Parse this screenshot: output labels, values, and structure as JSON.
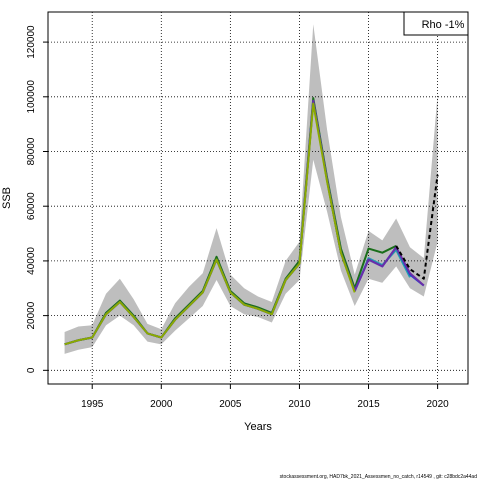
{
  "chart_data": {
    "type": "line",
    "title": "",
    "xlabel": "Years",
    "ylabel": "SSB",
    "xlim": [
      1991.8,
      2022.2
    ],
    "ylim": [
      -5000,
      131000
    ],
    "x_ticks": [
      1995,
      2000,
      2005,
      2010,
      2015,
      2020
    ],
    "y_ticks": [
      0,
      20000,
      40000,
      60000,
      80000,
      100000,
      120000
    ],
    "grid": true,
    "legend_text": "Rho -1%",
    "legend_position": "top-right",
    "footer": "stockassessment.org, HAD7bk_2021_Assessmen_no_catch, r14549 , git: c28bdc2a44ad",
    "confidence_band": {
      "color": "#bebebe",
      "x": [
        1993,
        1994,
        1995,
        1996,
        1997,
        1998,
        1999,
        2000,
        2001,
        2002,
        2003,
        2004,
        2005,
        2006,
        2007,
        2008,
        2009,
        2010,
        2011,
        2012,
        2013,
        2014,
        2015,
        2016,
        2017,
        2018,
        2019,
        2020
      ],
      "upper": [
        14000,
        16000,
        16500,
        28000,
        33500,
        26000,
        17000,
        15000,
        24500,
        30500,
        35500,
        52000,
        35000,
        30000,
        27000,
        25000,
        40000,
        47000,
        126500,
        88000,
        56000,
        35000,
        51000,
        47500,
        55500,
        45000,
        41000,
        101000
      ],
      "lower": [
        6000,
        7500,
        8500,
        16500,
        20000,
        16500,
        10500,
        9500,
        14500,
        19000,
        23500,
        33000,
        23500,
        20500,
        19500,
        17500,
        28000,
        33000,
        77000,
        58000,
        36500,
        23500,
        33500,
        32000,
        38000,
        30000,
        27000,
        47000
      ]
    },
    "series": [
      {
        "color": "#1a6e1a",
        "x": [
          1993,
          1994,
          1995,
          1996,
          1997,
          1998,
          1999,
          2000,
          2001,
          2002,
          2003,
          2004,
          2005,
          2006,
          2007,
          2008,
          2009,
          2010,
          2011,
          2012,
          2013,
          2014,
          2015,
          2016,
          2017
        ],
        "values": [
          9500,
          11000,
          12000,
          21000,
          25500,
          20000,
          13500,
          12000,
          19000,
          24000,
          29000,
          41500,
          29000,
          24500,
          23000,
          21000,
          33500,
          40000,
          99500,
          70500,
          44500,
          30000,
          44500,
          43000,
          45500
        ]
      },
      {
        "color": "#25a0b0",
        "x": [
          1993,
          1994,
          1995,
          1996,
          1997,
          1998,
          1999,
          2000,
          2001,
          2002,
          2003,
          2004,
          2005,
          2006,
          2007,
          2008,
          2009,
          2010,
          2011,
          2012,
          2013,
          2014,
          2015,
          2016,
          2017,
          2018
        ],
        "values": [
          9500,
          11000,
          12000,
          20500,
          25000,
          19500,
          13500,
          12000,
          18500,
          23500,
          28500,
          40500,
          28500,
          24000,
          22500,
          20500,
          33000,
          39000,
          98500,
          69500,
          43000,
          29000,
          41000,
          38500,
          44000,
          34000
        ]
      },
      {
        "color": "#1d3fd6",
        "x": [
          1993,
          1994,
          1995,
          1996,
          1997,
          1998,
          1999,
          2000,
          2001,
          2002,
          2003,
          2004,
          2005,
          2006,
          2007,
          2008,
          2009,
          2010,
          2011,
          2012,
          2013,
          2014,
          2015,
          2016,
          2017,
          2018,
          2019
        ],
        "values": [
          9500,
          11000,
          12000,
          20500,
          25000,
          19500,
          13500,
          12000,
          18500,
          23500,
          28500,
          40500,
          28500,
          24000,
          22500,
          20500,
          33000,
          39000,
          98500,
          69500,
          43000,
          29000,
          40500,
          38000,
          45000,
          35000,
          31000
        ]
      },
      {
        "color": "#6a2ea8",
        "x": [
          1993,
          1994,
          1995,
          1996,
          1997,
          1998,
          1999,
          2000,
          2001,
          2002,
          2003,
          2004,
          2005,
          2006,
          2007,
          2008,
          2009,
          2010,
          2011,
          2012,
          2013,
          2014,
          2015,
          2016,
          2017,
          2018,
          2019
        ],
        "values": [
          9500,
          11000,
          12000,
          20500,
          25000,
          19500,
          13500,
          12000,
          18500,
          23500,
          28500,
          40500,
          28500,
          24000,
          22500,
          20500,
          33000,
          39000,
          98500,
          69500,
          43000,
          29000,
          40500,
          38000,
          45000,
          35500,
          31000
        ]
      },
      {
        "color": "#8aaa00",
        "x": [
          1993,
          1994,
          1995,
          1996,
          1997,
          1998,
          1999,
          2000,
          2001,
          2002,
          2003,
          2004,
          2005,
          2006,
          2007,
          2008,
          2009,
          2010,
          2011,
          2012,
          2013,
          2014
        ],
        "values": [
          9500,
          11000,
          12000,
          20500,
          25000,
          19500,
          13500,
          12000,
          18500,
          23500,
          28500,
          40500,
          28500,
          24000,
          22500,
          20500,
          33000,
          39000,
          97500,
          69000,
          43000,
          28500
        ]
      },
      {
        "color": "#000000",
        "dashed": true,
        "x": [
          2017,
          2018,
          2019,
          2020
        ],
        "values": [
          45500,
          37000,
          33500,
          71500
        ]
      }
    ]
  }
}
